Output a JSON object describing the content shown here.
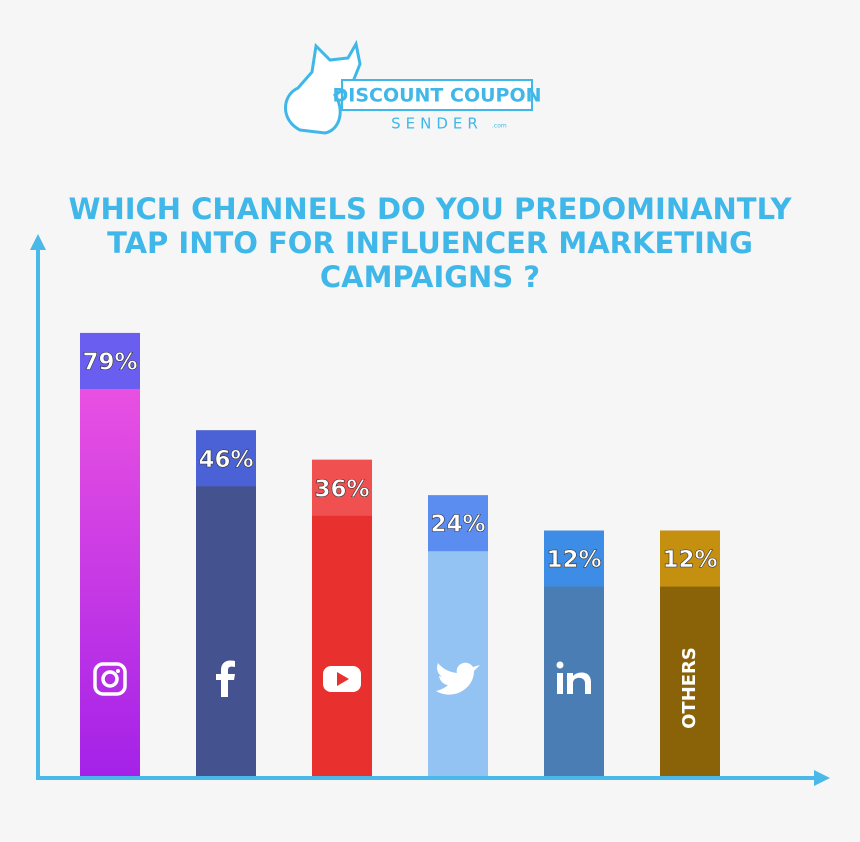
{
  "logo": {
    "name": "DISCOUNT COUPON",
    "tagline": "SENDER",
    "suffix": ".com"
  },
  "chart_data": {
    "type": "bar",
    "title": "WHICH CHANNELS DO YOU PREDOMINANTLY TAP INTO FOR INFLUENCER MARKETING CAMPAIGNS ?",
    "categories": [
      null,
      null,
      null,
      null,
      null,
      "OTHERS"
    ],
    "values": [
      79,
      46,
      36,
      24,
      12,
      12
    ],
    "value_labels": [
      "79%",
      "46%",
      "36%",
      "24%",
      "12%",
      "12%"
    ],
    "colors": [
      "#d43de6",
      "#44538f",
      "#e8302e",
      "#93c3f2",
      "#4a7db3",
      "#8a6309"
    ],
    "label_colors": [
      "#6a5ef0",
      "#4a62d6",
      "#f0504f",
      "#5b8cf0",
      "#3d8de6",
      "#c58f0f"
    ]
  }
}
